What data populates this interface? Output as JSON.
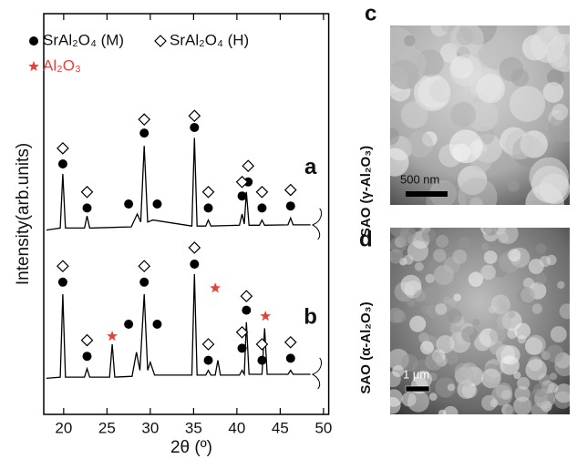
{
  "chart_data": {
    "type": "line",
    "x_label": "2θ (º)",
    "y_label": "Intensity(arb.units)",
    "xlim": [
      17.7,
      50.6
    ],
    "xticks": [
      20,
      25,
      30,
      35,
      40,
      45,
      50
    ],
    "ylim": [
      0,
      100
    ],
    "series": [
      {
        "name": "a",
        "color": "#000000",
        "x": [
          18,
          19.6,
          19.9,
          20.2,
          22.4,
          22.7,
          23.0,
          27.8,
          28.5,
          28.9,
          29.3,
          29.7,
          30.3,
          34.8,
          35.1,
          35.4,
          36.4,
          36.7,
          37.0,
          40.3,
          40.6,
          40.85,
          41.1,
          41.4,
          42.6,
          42.9,
          43.2,
          45.9,
          46.2,
          46.5,
          48.5
        ],
        "values": [
          46,
          46.5,
          60,
          46.5,
          46.5,
          49.5,
          46.5,
          46.8,
          50,
          48,
          67,
          48,
          48.5,
          47,
          69,
          47,
          47,
          48.5,
          47,
          47.2,
          50,
          47.5,
          55.5,
          47.2,
          47.2,
          48.5,
          47.2,
          47.3,
          49,
          47.3,
          47.3
        ]
      },
      {
        "name": "b",
        "color": "#000000",
        "x": [
          18,
          19.6,
          19.9,
          20.2,
          22.4,
          22.7,
          23.0,
          25.3,
          25.6,
          25.9,
          27.9,
          28.4,
          28.8,
          29.3,
          29.7,
          30.0,
          30.5,
          34.8,
          35.1,
          35.4,
          36.4,
          36.7,
          37.0,
          37.5,
          37.8,
          38.1,
          40.3,
          40.6,
          40.85,
          41.1,
          41.4,
          42.9,
          43.2,
          43.5,
          45.9,
          46.2,
          46.5,
          48.5
        ],
        "values": [
          9,
          9.3,
          30,
          9.3,
          9.3,
          11.4,
          9.3,
          9.3,
          17.5,
          9.3,
          9.5,
          15.5,
          11,
          30,
          11,
          13,
          9.8,
          9.8,
          35,
          9.8,
          9.8,
          11,
          9.8,
          9.8,
          13.5,
          9.8,
          9.8,
          11,
          10,
          23,
          10,
          10,
          21.5,
          10,
          10,
          11,
          10,
          10
        ]
      },
      {
        "name": "SrAl₂O₄ (M)",
        "color": "#000000",
        "marker": "circle",
        "x": [
          19.9,
          22.7,
          27.5,
          29.3,
          30.8,
          35.1,
          36.7,
          40.6,
          41.3,
          42.9,
          46.2,
          19.9,
          22.7,
          27.5,
          29.3,
          30.8,
          35.1,
          36.7,
          40.6,
          41.1,
          42.9,
          46.2
        ],
        "values": [
          62.5,
          51.5,
          52.5,
          70.2,
          52.5,
          71.6,
          51.5,
          54.5,
          58,
          51.5,
          52,
          33,
          14.5,
          22.5,
          33,
          22.5,
          37.5,
          13.5,
          16.5,
          26,
          13.5,
          14
        ]
      },
      {
        "name": "SrAl₂O₄ (H)",
        "color": "#000000",
        "marker": "diamond",
        "x": [
          19.9,
          22.7,
          29.3,
          35.1,
          36.7,
          40.6,
          41.3,
          42.9,
          46.2,
          19.9,
          22.7,
          29.3,
          35.1,
          36.7,
          40.6,
          41.1,
          42.9,
          46.2
        ],
        "values": [
          66.4,
          55.5,
          73.6,
          74.5,
          55.5,
          58,
          62,
          55.5,
          56,
          37,
          18.5,
          37,
          41.6,
          17.5,
          20.5,
          29.5,
          17.5,
          18
        ]
      },
      {
        "name": "Al₂O₃",
        "color": "#e8413c",
        "marker": "star",
        "x": [
          25.6,
          37.5,
          43.3
        ],
        "values": [
          19.5,
          31.5,
          24.5
        ]
      }
    ]
  },
  "panels": {
    "c": {
      "letter": "c",
      "label": "SAO (γ-Al₂O₃)",
      "scale_bar": "500 nm"
    },
    "d": {
      "letter": "d",
      "label": "SAO (α-Al₂O₃)",
      "scale_bar": "1 μm"
    }
  }
}
